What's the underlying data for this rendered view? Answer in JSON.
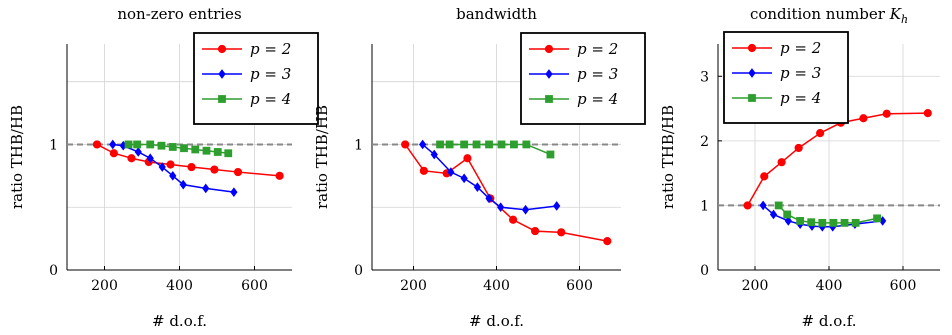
{
  "chart_data": [
    {
      "type": "line",
      "title": "non-zero entries",
      "xlabel": "# d.o.f.",
      "ylabel": "ratio THB/HB",
      "xlim": [
        100,
        700
      ],
      "ylim": [
        0,
        1.8
      ],
      "xticks": [
        200,
        400,
        600
      ],
      "yticks": [
        0,
        1
      ],
      "ytick_labels": [
        "0",
        "1"
      ],
      "grid": true,
      "reference_line": 1,
      "legend": "top-right",
      "series": [
        {
          "name": "p = 2",
          "color": "#ff0000",
          "marker": "circle",
          "x": [
            180,
            225,
            272,
            318,
            376,
            432,
            493,
            556,
            667
          ],
          "y": [
            1.0,
            0.93,
            0.89,
            0.86,
            0.84,
            0.82,
            0.8,
            0.78,
            0.75
          ]
        },
        {
          "name": "p = 3",
          "color": "#0000ff",
          "marker": "diamond",
          "x": [
            222,
            250,
            290,
            322,
            354,
            382,
            410,
            470,
            545
          ],
          "y": [
            1.0,
            0.99,
            0.94,
            0.89,
            0.82,
            0.75,
            0.68,
            0.65,
            0.62
          ]
        },
        {
          "name": "p = 4",
          "color": "#2e9e2e",
          "marker": "square",
          "x": [
            264,
            287,
            322,
            352,
            382,
            412,
            442,
            472,
            502,
            530
          ],
          "y": [
            1.0,
            1.0,
            1.0,
            0.99,
            0.98,
            0.97,
            0.96,
            0.95,
            0.94,
            0.93
          ]
        }
      ]
    },
    {
      "type": "line",
      "title": "bandwidth",
      "xlabel": "# d.o.f.",
      "ylabel": "ratio THB/HB",
      "xlim": [
        100,
        700
      ],
      "ylim": [
        0,
        1.8
      ],
      "xticks": [
        200,
        400,
        600
      ],
      "yticks": [
        0,
        1
      ],
      "ytick_labels": [
        "0",
        "1"
      ],
      "grid": true,
      "reference_line": 1,
      "legend": "top-right",
      "series": [
        {
          "name": "p = 2",
          "color": "#ff0000",
          "marker": "circle",
          "x": [
            180,
            225,
            280,
            330,
            385,
            440,
            493,
            556,
            667
          ],
          "y": [
            1.0,
            0.79,
            0.77,
            0.89,
            0.57,
            0.4,
            0.31,
            0.3,
            0.23
          ]
        },
        {
          "name": "p = 3",
          "color": "#0000ff",
          "marker": "diamond",
          "x": [
            222,
            250,
            290,
            322,
            354,
            382,
            410,
            470,
            545
          ],
          "y": [
            1.0,
            0.92,
            0.78,
            0.73,
            0.66,
            0.57,
            0.5,
            0.48,
            0.51
          ]
        },
        {
          "name": "p = 4",
          "color": "#2e9e2e",
          "marker": "square",
          "x": [
            264,
            287,
            322,
            352,
            382,
            412,
            442,
            472,
            530
          ],
          "y": [
            1.0,
            1.0,
            1.0,
            1.0,
            1.0,
            1.0,
            1.0,
            1.0,
            0.92
          ]
        }
      ]
    },
    {
      "type": "line",
      "title": "condition number K_h",
      "xlabel": "# d.o.f.",
      "ylabel": "ratio THB/HB",
      "xlim": [
        100,
        700
      ],
      "ylim": [
        0,
        3.5
      ],
      "xticks": [
        200,
        400,
        600
      ],
      "yticks": [
        0,
        1,
        2,
        3
      ],
      "ytick_labels": [
        "0",
        "1",
        "2",
        "3"
      ],
      "grid": true,
      "reference_line": 1,
      "legend": "top-left",
      "series": [
        {
          "name": "p = 2",
          "color": "#ff0000",
          "marker": "circle",
          "x": [
            180,
            225,
            272,
            318,
            376,
            432,
            493,
            556,
            667
          ],
          "y": [
            1.0,
            1.45,
            1.67,
            1.89,
            2.12,
            2.28,
            2.35,
            2.42,
            2.43
          ]
        },
        {
          "name": "p = 3",
          "color": "#0000ff",
          "marker": "diamond",
          "x": [
            222,
            250,
            290,
            322,
            354,
            382,
            410,
            470,
            545
          ],
          "y": [
            1.0,
            0.86,
            0.76,
            0.71,
            0.68,
            0.67,
            0.67,
            0.71,
            0.76
          ]
        },
        {
          "name": "p = 4",
          "color": "#2e9e2e",
          "marker": "square",
          "x": [
            264,
            287,
            322,
            352,
            382,
            412,
            442,
            472,
            530
          ],
          "y": [
            1.0,
            0.86,
            0.76,
            0.74,
            0.73,
            0.73,
            0.73,
            0.73,
            0.8
          ]
        }
      ]
    }
  ]
}
